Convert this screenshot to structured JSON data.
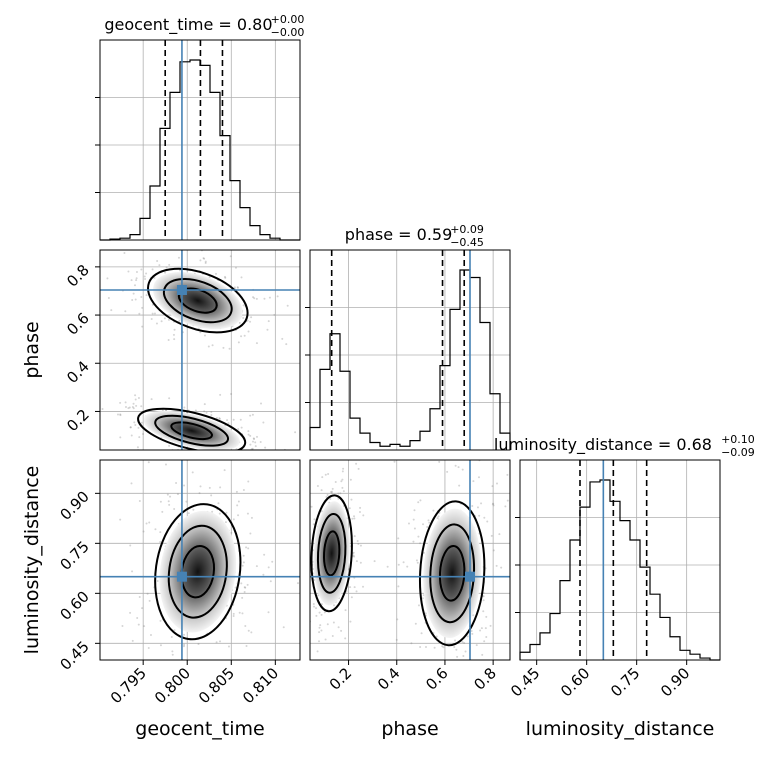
{
  "chart_data": {
    "type": "corner",
    "parameters": [
      "geocent_time",
      "phase",
      "luminosity_distance"
    ],
    "truths": {
      "geocent_time": 0.7994,
      "phase": 0.704,
      "luminosity_distance": 0.65
    },
    "colors": {
      "truth": "#4682b4",
      "hist": "#000000",
      "grid": "#b0b0b0"
    },
    "grid": true,
    "titles": [
      {
        "param": "geocent_time",
        "label": "geocent_time = 0.80",
        "plus": "+0.00",
        "minus": "−0.00"
      },
      {
        "param": "phase",
        "label": "phase = 0.59",
        "plus": "+0.09",
        "minus": "−0.45"
      },
      {
        "param": "luminosity_distance",
        "label": "luminosity_distance = 0.68",
        "plus": "+0.10",
        "minus": "−0.09"
      }
    ],
    "axis_labels": {
      "geocent_time": "geocent_time",
      "phase": "phase",
      "luminosity_distance": "luminosity_distance"
    },
    "ranges": {
      "geocent_time": [
        0.7901,
        0.8128
      ],
      "phase": [
        0.04,
        0.87
      ],
      "luminosity_distance": [
        0.4,
        1.0
      ]
    },
    "ticks": {
      "geocent_time": [
        "0.795",
        "0.800",
        "0.805",
        "0.810"
      ],
      "phase": [
        "0.2",
        "0.4",
        "0.6",
        "0.8"
      ],
      "luminosity_distance": [
        "0.45",
        "0.60",
        "0.75",
        "0.90"
      ]
    },
    "marginals": [
      {
        "param": "geocent_time",
        "quantiles": [
          0.7975,
          0.8015,
          0.804
        ],
        "bin_edges_range": [
          0.7901,
          0.8128
        ],
        "counts": [
          0,
          0.5,
          1,
          3,
          12,
          30,
          62,
          82,
          99,
          100,
          97,
          82,
          58,
          33,
          18,
          8,
          3,
          1,
          0,
          0
        ]
      },
      {
        "param": "phase",
        "quantiles": [
          0.13,
          0.59,
          0.68
        ],
        "bin_edges_range": [
          0.04,
          0.87
        ],
        "counts": [
          12,
          43,
          62,
          42,
          17,
          9,
          4,
          2,
          3,
          2,
          5,
          10,
          22,
          45,
          75,
          96,
          92,
          68,
          30,
          9
        ]
      },
      {
        "param": "luminosity_distance",
        "quantiles": [
          0.58,
          0.68,
          0.78
        ],
        "bin_edges_range": [
          0.4,
          1.0
        ],
        "counts": [
          4,
          8,
          14,
          24,
          41,
          62,
          79,
          92,
          93,
          82,
          72,
          62,
          48,
          34,
          22,
          12,
          5,
          3,
          1,
          0
        ]
      }
    ],
    "joint_panels": [
      {
        "x": "geocent_time",
        "y": "phase",
        "modes": [
          [
            0.8012,
            0.66
          ],
          [
            0.8005,
            0.12
          ]
        ]
      },
      {
        "x": "geocent_time",
        "y": "luminosity_distance",
        "modes": [
          [
            0.8012,
            0.665
          ]
        ]
      },
      {
        "x": "phase",
        "y": "luminosity_distance",
        "modes": [
          [
            0.13,
            0.72
          ],
          [
            0.63,
            0.66
          ]
        ]
      }
    ]
  }
}
